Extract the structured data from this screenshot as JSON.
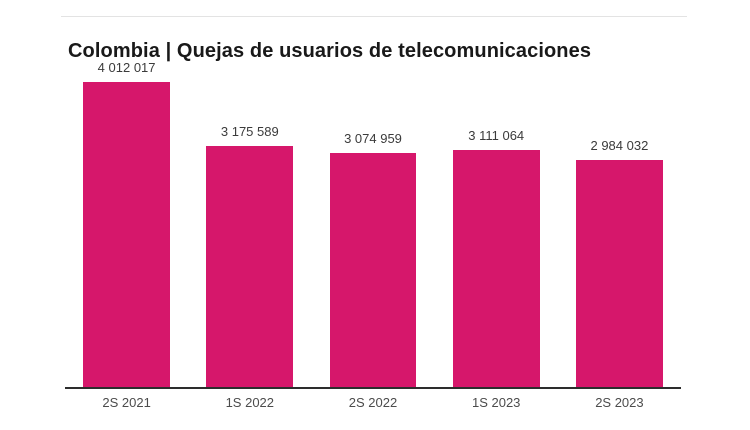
{
  "header": {
    "title": "Colombia | Quejas de usuarios de telecomunicaciones"
  },
  "colors": {
    "bar": "#d6176b",
    "title": "#191919",
    "value_label": "#3b3b3b",
    "tick_label": "#4c4c4c",
    "axis_line": "#2d2d2d",
    "divider": "#e3e3e3",
    "background": "#ffffff"
  },
  "chart_data": {
    "type": "bar",
    "title": "Colombia | Quejas de usuarios de telecomunicaciones",
    "categories": [
      "2S 2021",
      "1S 2022",
      "2S 2022",
      "1S 2023",
      "2S 2023"
    ],
    "values": [
      4012017,
      3175589,
      3074959,
      3111064,
      2984032
    ],
    "value_labels": [
      "4 012 017",
      "3 175 589",
      "3 074 959",
      "3 111 064",
      "2 984 032"
    ],
    "xlabel": "",
    "ylabel": "",
    "ylim": [
      0,
      4012017
    ],
    "grid": false,
    "legend": false,
    "bar_color": "#d6176b",
    "value_label_position": "above-bar"
  }
}
